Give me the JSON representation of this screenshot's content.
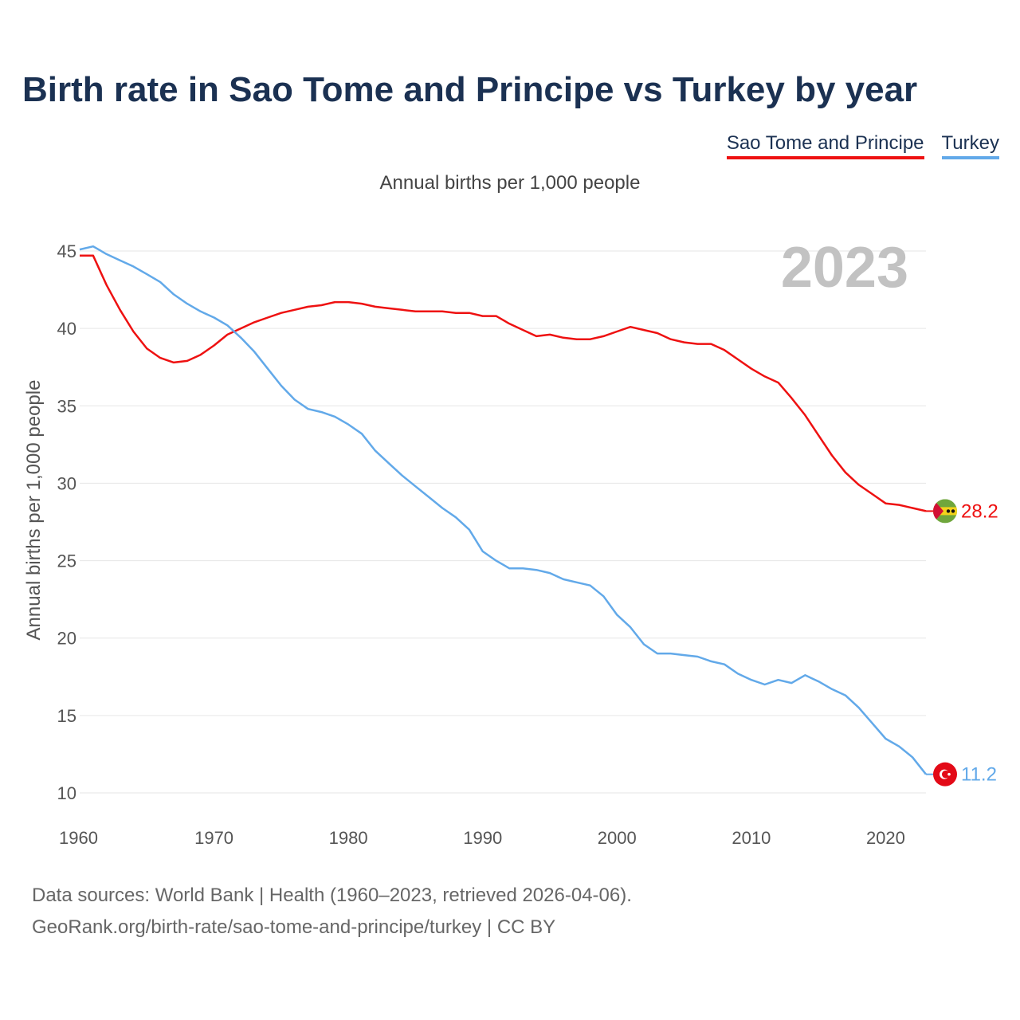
{
  "title": "Birth rate in Sao Tome and Principe vs Turkey by year",
  "subtitle": "Annual births per 1,000 people",
  "legend": {
    "sao": "Sao Tome and Principe",
    "turkey": "Turkey"
  },
  "year_label": "2023",
  "footer": {
    "line1": "Data sources: World Bank | Health (1960–2023, retrieved 2026-04-06).",
    "line2": "GeoRank.org/birth-rate/sao-tome-and-principe/turkey | CC BY"
  },
  "colors": {
    "sao": "#ee1111",
    "turkey": "#62a9e9",
    "title": "#1b3152"
  },
  "chart_data": {
    "type": "line",
    "title": "Birth rate in Sao Tome and Principe vs Turkey by year",
    "xlabel": "",
    "ylabel": "Annual births per 1,000 people",
    "xlim": [
      1960,
      2023
    ],
    "ylim": [
      10,
      45
    ],
    "x_ticks": [
      1960,
      1970,
      1980,
      1990,
      2000,
      2010,
      2020
    ],
    "y_ticks": [
      10,
      15,
      20,
      25,
      30,
      35,
      40,
      45
    ],
    "grid": true,
    "legend_position": "top-right",
    "x": [
      1960,
      1961,
      1962,
      1963,
      1964,
      1965,
      1966,
      1967,
      1968,
      1969,
      1970,
      1971,
      1972,
      1973,
      1974,
      1975,
      1976,
      1977,
      1978,
      1979,
      1980,
      1981,
      1982,
      1983,
      1984,
      1985,
      1986,
      1987,
      1988,
      1989,
      1990,
      1991,
      1992,
      1993,
      1994,
      1995,
      1996,
      1997,
      1998,
      1999,
      2000,
      2001,
      2002,
      2003,
      2004,
      2005,
      2006,
      2007,
      2008,
      2009,
      2010,
      2011,
      2012,
      2013,
      2014,
      2015,
      2016,
      2017,
      2018,
      2019,
      2020,
      2021,
      2022,
      2023
    ],
    "series": [
      {
        "name": "Sao Tome and Principe",
        "color": "#ee1111",
        "end_label": "28.2",
        "values": [
          44.7,
          44.7,
          42.8,
          41.2,
          39.8,
          38.7,
          38.1,
          37.8,
          37.9,
          38.3,
          38.9,
          39.6,
          40.0,
          40.4,
          40.7,
          41.0,
          41.2,
          41.4,
          41.5,
          41.7,
          41.7,
          41.6,
          41.4,
          41.3,
          41.2,
          41.1,
          41.1,
          41.1,
          41.0,
          41.0,
          40.8,
          40.8,
          40.3,
          39.9,
          39.5,
          39.6,
          39.4,
          39.3,
          39.3,
          39.5,
          39.8,
          40.1,
          39.9,
          39.7,
          39.3,
          39.1,
          39.0,
          39.0,
          38.6,
          38.0,
          37.4,
          36.9,
          36.5,
          35.5,
          34.4,
          33.1,
          31.8,
          30.7,
          29.9,
          29.3,
          28.7,
          28.6,
          28.4,
          28.2
        ]
      },
      {
        "name": "Turkey",
        "color": "#62a9e9",
        "end_label": "11.2",
        "values": [
          45.1,
          45.3,
          44.8,
          44.4,
          44.0,
          43.5,
          43.0,
          42.2,
          41.6,
          41.1,
          40.7,
          40.2,
          39.4,
          38.5,
          37.4,
          36.3,
          35.4,
          34.8,
          34.6,
          34.3,
          33.8,
          33.2,
          32.1,
          31.3,
          30.5,
          29.8,
          29.1,
          28.4,
          27.8,
          27.0,
          25.6,
          25.0,
          24.5,
          24.5,
          24.4,
          24.2,
          23.8,
          23.6,
          23.4,
          22.7,
          21.5,
          20.7,
          19.6,
          19.0,
          19.0,
          18.9,
          18.8,
          18.5,
          18.3,
          17.7,
          17.3,
          17.0,
          17.3,
          17.1,
          17.6,
          17.2,
          16.7,
          16.3,
          15.5,
          14.5,
          13.5,
          13.0,
          12.3,
          11.2
        ]
      }
    ]
  }
}
